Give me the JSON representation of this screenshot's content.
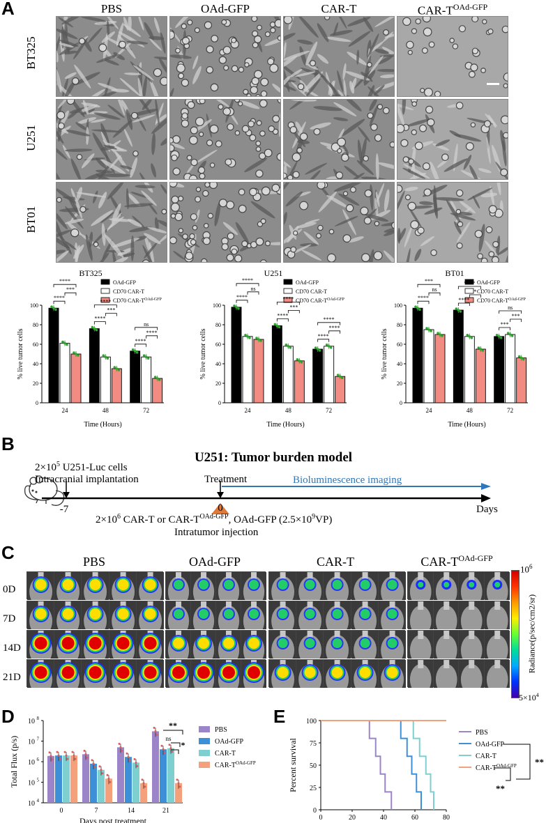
{
  "panelA": {
    "letter": "A",
    "col_headers": [
      "PBS",
      "OAd-GFP",
      "CAR-T",
      "CAR-T"
    ],
    "col_header_sup": "OAd-GFP",
    "row_labels": [
      "BT325",
      "U251",
      "BT01"
    ]
  },
  "panelA_charts": {
    "chart_data": [
      {
        "type": "bar",
        "title": "BT325",
        "ylabel": "% live tumor cells",
        "xlabel": "Time (Hours)",
        "categories": [
          "24",
          "48",
          "72"
        ],
        "ylim": [
          0,
          100
        ],
        "yticks": [
          "0",
          "20",
          "40",
          "60",
          "80",
          "100"
        ],
        "series": [
          {
            "name": "OAd-GFP",
            "values": [
              97,
              76,
              53
            ]
          },
          {
            "name": "CD70 CAR-T",
            "values": [
              61,
              47,
              47
            ]
          },
          {
            "name": "CD70 CAR-T",
            "sup": "OAd-GFP",
            "values": [
              50,
              35,
              25
            ]
          }
        ],
        "sig": [
          [
            "****",
            "****",
            "***"
          ],
          [
            "****",
            "****",
            "***"
          ],
          [
            "****",
            "ns",
            "****"
          ]
        ]
      },
      {
        "type": "bar",
        "title": "U251",
        "ylabel": "% live tumor cells",
        "xlabel": "Time (Hours)",
        "categories": [
          "24",
          "48",
          "72"
        ],
        "ylim": [
          0,
          100
        ],
        "yticks": [
          "0",
          "20",
          "40",
          "60",
          "80",
          "100"
        ],
        "series": [
          {
            "name": "OAd-GFP",
            "values": [
              98,
              79,
              55
            ]
          },
          {
            "name": "CD70 CAR-T",
            "values": [
              68,
              58,
              58
            ]
          },
          {
            "name": "CD70 CAR-T",
            "sup": "OAd-GFP",
            "values": [
              65,
              43,
              27
            ]
          }
        ],
        "sig": [
          [
            "****",
            "****",
            "ns"
          ],
          [
            "****",
            "****",
            "***"
          ],
          [
            "****",
            "****",
            "****"
          ]
        ]
      },
      {
        "type": "bar",
        "title": "BT01",
        "ylabel": "% live tumor cells",
        "xlabel": "Time (Hours)",
        "categories": [
          "24",
          "48",
          "72"
        ],
        "ylim": [
          0,
          100
        ],
        "yticks": [
          "0",
          "20",
          "40",
          "60",
          "80",
          "100"
        ],
        "series": [
          {
            "name": "OAd-GFP",
            "values": [
              97,
              95,
              68
            ]
          },
          {
            "name": "CD70 CAR-T",
            "values": [
              75,
              68,
              70
            ]
          },
          {
            "name": "CD70 CAR-T",
            "sup": "OAd-GFP",
            "values": [
              70,
              55,
              46
            ]
          }
        ],
        "sig": [
          [
            "****",
            "***",
            "ns"
          ],
          [
            "****",
            "****",
            "*"
          ],
          [
            "***",
            "ns",
            "***"
          ]
        ]
      }
    ]
  },
  "panelB": {
    "letter": "B",
    "title": "U251: Tumor burden model",
    "left_line1": "2×10",
    "left_sup1": "5",
    "left_line1b": " U251-Luc cells",
    "left_line2": "Intracranial implantation",
    "treatment": "Treatment",
    "imaging": "Bioluminescence imaging",
    "days": "Days",
    "tick_m7": "-7",
    "tick_0": "0",
    "bottom_a": "2×10",
    "bottom_sup_a": "6",
    "bottom_b": " CAR-T or CAR-T",
    "bottom_sup_b": "OAd-GFP",
    "bottom_c": ", OAd-GFP (2.5×10",
    "bottom_sup_c": "9",
    "bottom_d": "VP)",
    "injection": "Intratumor injection"
  },
  "panelC": {
    "letter": "C",
    "col_headers": [
      "PBS",
      "OAd-GFP",
      "CAR-T",
      "CAR-T"
    ],
    "col_header_sup": "OAd-GFP",
    "row_labels": [
      "0D",
      "7D",
      "14D",
      "21D"
    ],
    "colorbar_top": "10",
    "colorbar_top_sup": "6",
    "colorbar_bottom": "5×10",
    "colorbar_bottom_sup": "4",
    "colorbar_label": "Radiance(p/sec/cm2/sr)"
  },
  "panelD": {
    "letter": "D",
    "chart_data": {
      "type": "bar",
      "ylabel": "Total Flux (p/s)",
      "xlabel": "Days post treatment",
      "categories": [
        "0",
        "7",
        "14",
        "21"
      ],
      "yscale": "log",
      "ylim": [
        10000,
        100000000
      ],
      "yticks": [
        "10",
        "10",
        "10",
        "10",
        "10"
      ],
      "ytick_sups": [
        "4",
        "5",
        "6",
        "7",
        "8"
      ],
      "series": [
        {
          "name": "PBS",
          "color": "#9b84c7",
          "values": [
            1900000,
            2300000,
            5000000,
            30000000
          ]
        },
        {
          "name": "OAd-GFP",
          "color": "#3d8fd8",
          "values": [
            2000000,
            800000,
            1700000,
            4000000
          ]
        },
        {
          "name": "CAR-T",
          "color": "#7ecfcf",
          "values": [
            2000000,
            400000,
            900000,
            4500000
          ]
        },
        {
          "name": "CAR-T",
          "sup": "OAd-GFP",
          "color": "#f4a07a",
          "values": [
            2000000,
            150000,
            90000,
            90000
          ]
        }
      ],
      "sig": [
        "**",
        "ns",
        "*"
      ]
    }
  },
  "panelE": {
    "letter": "E",
    "chart_data": {
      "type": "line",
      "ylabel": "Percent survival",
      "xlabel": "Days post treatment",
      "xlim": [
        0,
        80
      ],
      "ylim": [
        0,
        100
      ],
      "xticks": [
        "0",
        "20",
        "40",
        "60",
        "80"
      ],
      "yticks": [
        "0",
        "25",
        "50",
        "75",
        "100"
      ],
      "series": [
        {
          "name": "PBS",
          "color": "#9b84c7",
          "x": [
            0,
            31,
            31,
            35,
            35,
            38,
            38,
            41,
            41,
            45,
            45
          ],
          "y": [
            100,
            100,
            80,
            80,
            60,
            60,
            40,
            40,
            20,
            20,
            0
          ]
        },
        {
          "name": "OAd-GFP",
          "color": "#3d8fd8",
          "x": [
            0,
            51,
            51,
            55,
            55,
            58,
            58,
            61,
            61,
            64,
            64
          ],
          "y": [
            100,
            100,
            80,
            80,
            60,
            60,
            40,
            40,
            20,
            20,
            0
          ]
        },
        {
          "name": "CAR-T",
          "color": "#7ecfcf",
          "x": [
            0,
            59,
            59,
            63,
            63,
            67,
            67,
            70,
            70,
            72,
            72
          ],
          "y": [
            100,
            100,
            80,
            80,
            60,
            60,
            40,
            40,
            20,
            20,
            0
          ]
        },
        {
          "name": "CAR-T",
          "sup": "OAd-GFP",
          "color": "#f4a07a",
          "x": [
            0,
            80
          ],
          "y": [
            100,
            100
          ]
        }
      ],
      "sig": [
        "**",
        "**"
      ]
    }
  }
}
